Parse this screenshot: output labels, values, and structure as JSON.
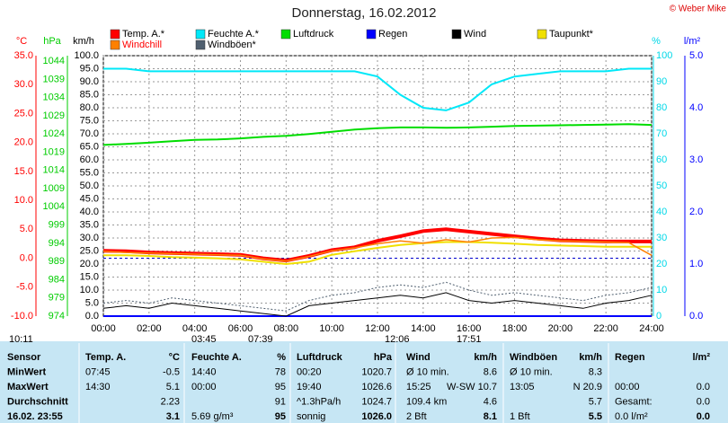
{
  "chart_data": {
    "type": "line",
    "title": "Donnerstag, 16.02.2012",
    "copyright": "© Weber Mike",
    "x": [
      0,
      1,
      2,
      3,
      4,
      5,
      6,
      7,
      8,
      9,
      10,
      11,
      12,
      13,
      14,
      15,
      16,
      17,
      18,
      19,
      20,
      21,
      22,
      23,
      24
    ],
    "xlim": [
      0,
      24
    ],
    "xticks": [
      {
        "value": 0,
        "label": "00:00"
      },
      {
        "value": 2,
        "label": "02:00"
      },
      {
        "value": 4,
        "label": "04:00"
      },
      {
        "value": 6,
        "label": "06:00"
      },
      {
        "value": 8,
        "label": "08:00"
      },
      {
        "value": 10,
        "label": "10:00"
      },
      {
        "value": 12,
        "label": "12:00"
      },
      {
        "value": 14,
        "label": "14:00"
      },
      {
        "value": 16,
        "label": "16:00"
      },
      {
        "value": 18,
        "label": "18:00"
      },
      {
        "value": 20,
        "label": "20:00"
      },
      {
        "value": 22,
        "label": "22:00"
      },
      {
        "value": 24,
        "label": "24:00"
      }
    ],
    "ylabel": "km/h",
    "ylim": [
      0,
      100
    ],
    "yticks": [
      {
        "value": 0,
        "label": "0.0"
      },
      {
        "value": 5,
        "label": "5.0"
      },
      {
        "value": 10,
        "label": "10.0"
      },
      {
        "value": 15,
        "label": "15.0"
      },
      {
        "value": 20,
        "label": "20.0"
      },
      {
        "value": 25,
        "label": "25.0"
      },
      {
        "value": 30,
        "label": "30.0"
      },
      {
        "value": 35,
        "label": "35.0"
      },
      {
        "value": 40,
        "label": "40.0"
      },
      {
        "value": 45,
        "label": "45.0"
      },
      {
        "value": 50,
        "label": "50.0"
      },
      {
        "value": 55,
        "label": "55.0"
      },
      {
        "value": 60,
        "label": "60.0"
      },
      {
        "value": 65,
        "label": "65.0"
      },
      {
        "value": 70,
        "label": "70.0"
      },
      {
        "value": 75,
        "label": "75.0"
      },
      {
        "value": 80,
        "label": "80.0"
      },
      {
        "value": 85,
        "label": "85.0"
      },
      {
        "value": 90,
        "label": "90.0"
      },
      {
        "value": 95,
        "label": "95.0"
      },
      {
        "value": 100,
        "label": "100.0"
      }
    ],
    "y2label": "%",
    "y2lim": [
      0,
      100
    ],
    "y2ticks": [
      0,
      10,
      20,
      30,
      40,
      50,
      60,
      70,
      80,
      90,
      100
    ],
    "y3label": "°C",
    "y3lim": [
      -10,
      35
    ],
    "y3ticks": [
      {
        "value": -10,
        "label": "-10.0"
      },
      {
        "value": -5,
        "label": "-5.0"
      },
      {
        "value": 0,
        "label": "0.0"
      },
      {
        "value": 5,
        "label": "5.0"
      },
      {
        "value": 10,
        "label": "10.0"
      },
      {
        "value": 15,
        "label": "15.0"
      },
      {
        "value": 20,
        "label": "20.0"
      },
      {
        "value": 25,
        "label": "25.0"
      },
      {
        "value": 30,
        "label": "30.0"
      },
      {
        "value": 35,
        "label": "35.0"
      }
    ],
    "y4label": "hPa",
    "y4lim": [
      974,
      1045.5
    ],
    "y4ticks": [
      974,
      979,
      984,
      989,
      994,
      999,
      1004,
      1009,
      1014,
      1019,
      1024,
      1029,
      1034,
      1039,
      1044
    ],
    "y5label": "l/m²",
    "y5lim": [
      0,
      5
    ],
    "y5ticks": [
      {
        "value": 0,
        "label": "0.0"
      },
      {
        "value": 1,
        "label": "1.0"
      },
      {
        "value": 2,
        "label": "2.0"
      },
      {
        "value": 3,
        "label": "3.0"
      },
      {
        "value": 4,
        "label": "4.0"
      },
      {
        "value": 5,
        "label": "5.0"
      }
    ],
    "grid": true,
    "series": [
      {
        "name": "Temp. A.*",
        "color": "#ff0000",
        "axis": "y3",
        "values": [
          1.3,
          1.2,
          1.0,
          0.9,
          0.8,
          0.7,
          0.6,
          0.0,
          -0.4,
          0.4,
          1.4,
          1.9,
          3.0,
          3.8,
          4.7,
          5.0,
          4.6,
          4.2,
          3.8,
          3.4,
          3.1,
          3.0,
          2.9,
          2.9,
          2.9
        ]
      },
      {
        "name": "Feuchte A.*",
        "color": "#00e8f8",
        "axis": "y2",
        "values": [
          95,
          95,
          94,
          94,
          94,
          94,
          94,
          94,
          94,
          94,
          94,
          94,
          92,
          85,
          80,
          79,
          82,
          89,
          92,
          93,
          94,
          94,
          94,
          95,
          95
        ]
      },
      {
        "name": "Luftdruck",
        "color": "#00dd00",
        "axis": "y4",
        "values": [
          1021,
          1021.3,
          1021.6,
          1022,
          1022.4,
          1022.5,
          1022.8,
          1023.2,
          1023.5,
          1024,
          1024.6,
          1025.2,
          1025.6,
          1025.8,
          1025.8,
          1025.7,
          1025.8,
          1026,
          1026.2,
          1026.3,
          1026.4,
          1026.5,
          1026.6,
          1026.7,
          1026.5
        ]
      },
      {
        "name": "Regen",
        "color": "#0000ff",
        "axis": "y5",
        "values": [
          0,
          0,
          0,
          0,
          0,
          0,
          0,
          0,
          0,
          0,
          0,
          0,
          0,
          0,
          0,
          0,
          0,
          0,
          0,
          0,
          0,
          0,
          0,
          0,
          0
        ]
      },
      {
        "name": "Wind",
        "color": "#000000",
        "axis": "y",
        "values": [
          3,
          4,
          3,
          5,
          4,
          3,
          2,
          1,
          0,
          4,
          5,
          6,
          7,
          8,
          7,
          9,
          6,
          5,
          6,
          5,
          4,
          3,
          5,
          6,
          8
        ]
      },
      {
        "name": "Taupunkt*",
        "color": "#f0e000",
        "axis": "y3",
        "values": [
          0.5,
          0.5,
          0.4,
          0.2,
          0.1,
          0.0,
          -0.2,
          -0.6,
          -1.0,
          -0.6,
          0.6,
          1.2,
          1.8,
          2.3,
          2.6,
          2.8,
          2.8,
          2.7,
          2.5,
          2.3,
          2.2,
          2.1,
          2.0,
          2.0,
          2.0
        ]
      },
      {
        "name": "Windchill",
        "color": "#ff8000",
        "axis": "y3",
        "values": [
          1.2,
          1.0,
          0.9,
          0.8,
          0.7,
          0.6,
          0.5,
          -0.1,
          -0.5,
          0.3,
          1.3,
          1.8,
          2.5,
          3.0,
          2.6,
          3.2,
          2.8,
          3.5,
          3.6,
          3.2,
          3.0,
          2.9,
          2.8,
          2.7,
          0.5
        ]
      },
      {
        "name": "Windböen*",
        "color": "#506070",
        "axis": "y",
        "values": [
          5,
          6,
          5,
          7,
          6,
          5,
          4,
          3,
          2,
          6,
          8,
          9,
          11,
          12,
          11,
          13,
          10,
          8,
          9,
          8,
          7,
          6,
          8,
          9,
          11
        ]
      }
    ],
    "annotations": [
      "10:11",
      "03:45",
      "07:39",
      "12:06",
      "17:51"
    ]
  },
  "table": {
    "rows": [
      [
        "Sensor",
        "Temp. A.",
        "°C",
        "Feuchte A.",
        "%",
        "Luftdruck",
        "hPa",
        "Wind",
        "km/h",
        "Windböen",
        "km/h",
        "Regen",
        "l/m²"
      ],
      [
        "MinWert",
        "07:45",
        "-0.5",
        "14:40",
        "78",
        "00:20",
        "1020.7",
        "Ø 10 min.",
        "8.6",
        "Ø 10 min.",
        "8.3",
        null,
        null
      ],
      [
        "MaxWert",
        "14:30",
        "5.1",
        "00:00",
        "95",
        "19:40",
        "1026.6",
        "15:25",
        "W-SW 10.7",
        "13:05",
        "N 20.9",
        "00:00",
        "0.0"
      ],
      [
        "Durchschnitt",
        null,
        "2.23",
        null,
        "91",
        "^1.3hPa/h",
        "1024.7",
        "109.4 km",
        "4.6",
        null,
        "5.7",
        "Gesamt:",
        "0.0"
      ],
      [
        "16.02. 23:55",
        null,
        "3.1",
        "5.69 g/m³",
        "95",
        "sonnig",
        "1026.0",
        "2 Bft",
        "8.1",
        "1 Bft",
        "5.5",
        "0.0 l/m²",
        "0.0"
      ]
    ]
  }
}
